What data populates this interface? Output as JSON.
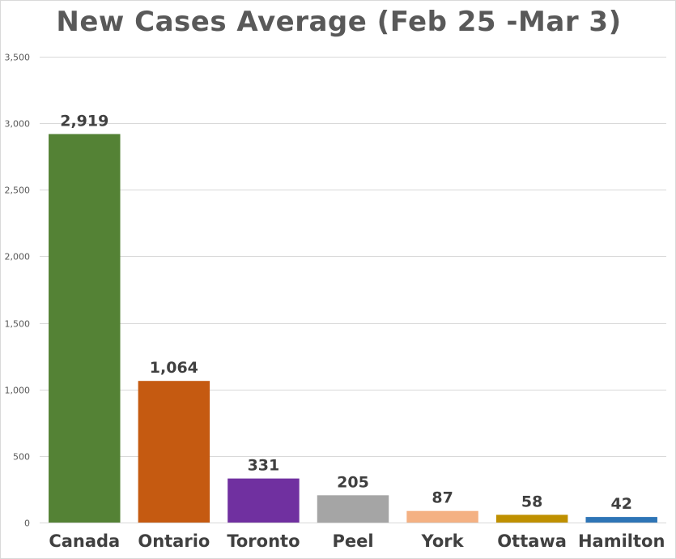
{
  "chart_data": {
    "type": "bar",
    "title": "New Cases Average (Feb 25 -Mar 3)",
    "categories": [
      "Canada",
      "Ontario",
      "Toronto",
      "Peel",
      "York",
      "Ottawa",
      "Hamilton"
    ],
    "values": [
      2919,
      1064,
      331,
      205,
      87,
      58,
      42
    ],
    "data_labels": [
      "2,919",
      "1,064",
      "331",
      "205",
      "87",
      "58",
      "42"
    ],
    "colors": [
      "#548235",
      "#c55a11",
      "#7030a0",
      "#a5a5a5",
      "#f4b183",
      "#bf9000",
      "#2e75b6"
    ],
    "yticks": [
      0,
      500,
      1000,
      1500,
      2000,
      2500,
      3000,
      3500
    ],
    "ytick_labels": [
      "0",
      "500",
      "1,000",
      "1,500",
      "2,000",
      "2,500",
      "3,000",
      "3,500"
    ],
    "ylim": [
      0,
      3500
    ],
    "xlabel": "",
    "ylabel": "",
    "grid": true,
    "legend": "none"
  }
}
